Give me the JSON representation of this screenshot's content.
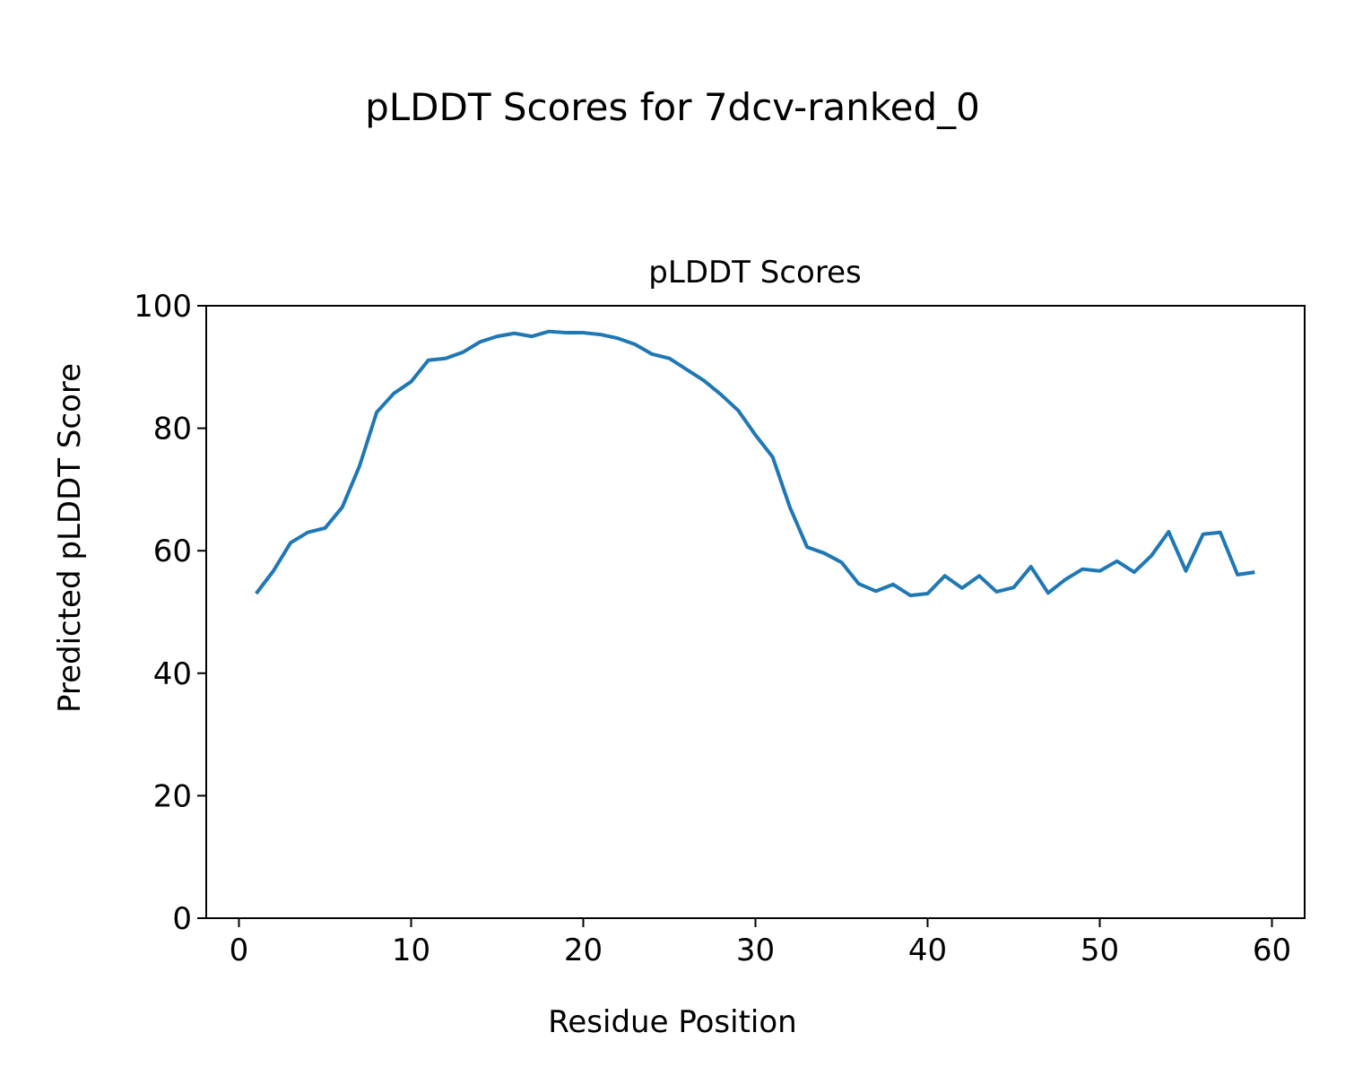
{
  "chart_data": {
    "type": "line",
    "suptitle": "pLDDT Scores for 7dcv-ranked_0",
    "title": "pLDDT Scores",
    "xlabel": "Residue Position",
    "ylabel": "Predicted pLDDT Score",
    "xlim": [
      -1.9,
      61.9
    ],
    "ylim": [
      0,
      100
    ],
    "xticks": [
      0,
      10,
      20,
      30,
      40,
      50,
      60
    ],
    "yticks": [
      0,
      20,
      40,
      60,
      80,
      100
    ],
    "grid": false,
    "color": "#1f77b4",
    "x": [
      1,
      2,
      3,
      4,
      5,
      6,
      7,
      8,
      9,
      10,
      11,
      12,
      13,
      14,
      15,
      16,
      17,
      18,
      19,
      20,
      21,
      22,
      23,
      24,
      25,
      26,
      27,
      28,
      29,
      30,
      31,
      32,
      33,
      34,
      35,
      36,
      37,
      38,
      39,
      40,
      41,
      42,
      43,
      44,
      45,
      46,
      47,
      48,
      49,
      50,
      51,
      52,
      53,
      54,
      55,
      56,
      57,
      58,
      59
    ],
    "y": [
      53.0,
      56.7,
      61.3,
      63.0,
      63.7,
      67.1,
      73.8,
      82.6,
      85.7,
      87.6,
      91.1,
      91.4,
      92.4,
      94.1,
      95.0,
      95.5,
      95.0,
      95.8,
      95.6,
      95.6,
      95.3,
      94.7,
      93.7,
      92.1,
      91.4,
      89.6,
      87.8,
      85.5,
      82.9,
      78.9,
      75.3,
      67.1,
      60.6,
      59.6,
      58.1,
      54.6,
      53.4,
      54.5,
      52.7,
      53.0,
      55.9,
      53.9,
      55.9,
      53.3,
      54.0,
      57.4,
      53.1,
      55.3,
      57.0,
      56.7,
      58.3,
      56.5,
      59.2,
      63.1,
      56.7,
      62.7,
      63.0,
      56.1,
      56.5
    ]
  }
}
